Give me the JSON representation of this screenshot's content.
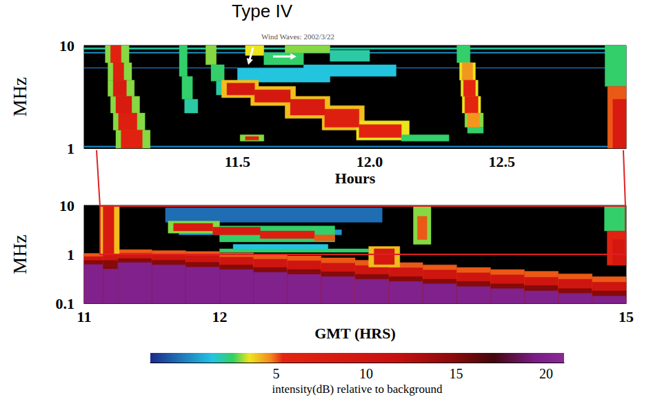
{
  "chart_data": [
    {
      "type": "heatmap",
      "title": "Wind Waves: 2002/3/22",
      "annotation": "Type IV",
      "x_label": "Hours",
      "y_label": "MHz",
      "xlim": [
        10.92,
        12.97
      ],
      "xticks": [
        11.5,
        {
          "value": 12,
          "label": "12.0"
        },
        12.5
      ],
      "ylim": [
        1,
        10
      ],
      "yticks": [
        1,
        10
      ],
      "log": "y",
      "grid": false,
      "cells": [
        [
          10.92,
          12.97,
          9.2,
          9.5,
          2
        ],
        [
          10.92,
          12.97,
          8.4,
          8.6,
          0.5
        ],
        [
          10.92,
          12.97,
          6.0,
          6.1,
          -0.5
        ],
        [
          10.92,
          12.97,
          1.02,
          1.05,
          0
        ],
        [
          11.0,
          11.09,
          6.8,
          10,
          3
        ],
        [
          11.01,
          11.1,
          4.6,
          6.8,
          3
        ],
        [
          11.01,
          11.11,
          3.2,
          4.6,
          3
        ],
        [
          11.02,
          11.13,
          2.2,
          3.2,
          3
        ],
        [
          11.03,
          11.15,
          1.5,
          2.2,
          3
        ],
        [
          11.04,
          11.17,
          1,
          1.5,
          3
        ],
        [
          11.02,
          11.06,
          6.8,
          10,
          6
        ],
        [
          11.03,
          11.07,
          4.6,
          6.8,
          7
        ],
        [
          11.03,
          11.08,
          3.2,
          4.6,
          8
        ],
        [
          11.04,
          11.1,
          2.2,
          3.2,
          8
        ],
        [
          11.05,
          11.12,
          1.5,
          2.2,
          7
        ],
        [
          11.06,
          11.14,
          1,
          1.5,
          6
        ],
        [
          11.28,
          11.31,
          5,
          10,
          2.5
        ],
        [
          11.29,
          11.33,
          3,
          5,
          2.5
        ],
        [
          11.3,
          11.35,
          2.2,
          3,
          2
        ],
        [
          11.38,
          11.42,
          6.5,
          10,
          3
        ],
        [
          11.4,
          11.45,
          4.5,
          6.5,
          2.5
        ],
        [
          11.42,
          11.48,
          3.3,
          4.5,
          2
        ],
        [
          11.5,
          11.85,
          4.4,
          6.0,
          1.5
        ],
        [
          11.75,
          12.1,
          5.0,
          6.5,
          1.5
        ],
        [
          11.53,
          11.6,
          8,
          10,
          3.5
        ],
        [
          11.6,
          11.75,
          6.5,
          8.5,
          2.5
        ],
        [
          11.68,
          11.85,
          8.5,
          10,
          3
        ],
        [
          11.85,
          12.0,
          7,
          9,
          2
        ],
        [
          11.44,
          11.58,
          3.1,
          4.6,
          4
        ],
        [
          11.55,
          11.72,
          2.6,
          4.0,
          4
        ],
        [
          11.68,
          11.85,
          1.95,
          3.2,
          4
        ],
        [
          11.82,
          11.98,
          1.5,
          2.6,
          4
        ],
        [
          11.95,
          12.15,
          1.2,
          1.85,
          3.5
        ],
        [
          11.46,
          11.565,
          3.3,
          4.3,
          9
        ],
        [
          11.565,
          11.7,
          2.8,
          3.7,
          9
        ],
        [
          11.7,
          11.83,
          2.1,
          3.0,
          8
        ],
        [
          11.83,
          11.96,
          1.6,
          2.4,
          7
        ],
        [
          11.96,
          12.12,
          1.27,
          1.7,
          6
        ],
        [
          12.12,
          12.3,
          1.17,
          1.35,
          2.5
        ],
        [
          11.51,
          11.6,
          1.17,
          1.35,
          3
        ],
        [
          11.53,
          11.58,
          1.2,
          1.3,
          6
        ],
        [
          12.33,
          12.38,
          6.8,
          10,
          2.5
        ],
        [
          12.34,
          12.4,
          4.6,
          6.8,
          3.5
        ],
        [
          12.345,
          12.41,
          3.2,
          4.6,
          3.5
        ],
        [
          12.35,
          12.42,
          2.2,
          3.2,
          3.5
        ],
        [
          12.36,
          12.43,
          1.6,
          2.2,
          3
        ],
        [
          12.37,
          12.43,
          1.4,
          1.6,
          2.5
        ],
        [
          12.35,
          12.39,
          4.6,
          6.8,
          4.5
        ],
        [
          12.355,
          12.4,
          3.2,
          4.6,
          5.5
        ],
        [
          12.36,
          12.41,
          2.2,
          3.2,
          5.5
        ],
        [
          12.37,
          12.415,
          1.6,
          2.2,
          4.5
        ],
        [
          12.89,
          12.97,
          4,
          10,
          2.5
        ],
        [
          12.9,
          12.97,
          1,
          4,
          5
        ],
        [
          12.92,
          12.97,
          1,
          3,
          8
        ]
      ]
    },
    {
      "type": "heatmap",
      "x_label": "GMT (HRS)",
      "y_label": "MHz",
      "xlim": [
        11,
        15
      ],
      "xticks": [
        11,
        12,
        15
      ],
      "ylim": [
        0.1,
        10
      ],
      "yticks": [
        0.1,
        1,
        10
      ],
      "log": "y",
      "grid": false,
      "colorbar": {
        "label": "intensity(dB) relative to background",
        "range": [
          -2,
          21
        ],
        "ticks": [
          5,
          10,
          15,
          20
        ]
      },
      "cells": [
        [
          11.6,
          13.2,
          4.5,
          9,
          -0.5
        ],
        [
          11.7,
          12.9,
          2.5,
          3.2,
          0.5
        ],
        [
          12.0,
          13.1,
          1.1,
          1.3,
          2.5
        ],
        [
          12.1,
          12.8,
          1.3,
          1.6,
          1.5
        ],
        [
          11.0,
          11.14,
          0.1,
          1.05,
          5
        ],
        [
          11.0,
          11.14,
          0.1,
          0.9,
          10
        ],
        [
          11.0,
          11.14,
          0.1,
          0.75,
          15
        ],
        [
          11.0,
          11.14,
          0.1,
          0.62,
          20
        ],
        [
          11.14,
          11.25,
          0.1,
          1.2,
          5
        ],
        [
          11.14,
          11.25,
          0.1,
          1.0,
          10
        ],
        [
          11.14,
          11.25,
          0.1,
          0.75,
          15
        ],
        [
          11.14,
          11.25,
          0.1,
          0.5,
          20
        ],
        [
          11.25,
          11.5,
          0.1,
          1.25,
          5
        ],
        [
          11.25,
          11.5,
          0.1,
          1.05,
          10
        ],
        [
          11.25,
          11.5,
          0.1,
          0.82,
          15
        ],
        [
          11.25,
          11.5,
          0.1,
          0.68,
          20
        ],
        [
          11.5,
          11.75,
          0.1,
          1.2,
          5
        ],
        [
          11.5,
          11.75,
          0.1,
          1.0,
          10
        ],
        [
          11.5,
          11.75,
          0.1,
          0.76,
          15
        ],
        [
          11.5,
          11.75,
          0.1,
          0.61,
          20
        ],
        [
          11.75,
          12.0,
          0.1,
          1.15,
          5
        ],
        [
          11.75,
          12.0,
          0.1,
          0.95,
          10
        ],
        [
          11.75,
          12.0,
          0.1,
          0.69,
          15
        ],
        [
          11.75,
          12.0,
          0.1,
          0.55,
          20
        ],
        [
          12.0,
          12.25,
          0.1,
          1.08,
          5
        ],
        [
          12.0,
          12.25,
          0.1,
          0.88,
          10
        ],
        [
          12.0,
          12.25,
          0.1,
          0.61,
          15
        ],
        [
          12.0,
          12.25,
          0.1,
          0.49,
          20
        ],
        [
          12.25,
          12.5,
          0.1,
          1.0,
          5
        ],
        [
          12.25,
          12.5,
          0.1,
          0.8,
          10
        ],
        [
          12.25,
          12.5,
          0.1,
          0.54,
          15
        ],
        [
          12.25,
          12.5,
          0.1,
          0.43,
          20
        ],
        [
          12.5,
          12.75,
          0.1,
          0.94,
          5
        ],
        [
          12.5,
          12.75,
          0.1,
          0.74,
          10
        ],
        [
          12.5,
          12.75,
          0.1,
          0.49,
          15
        ],
        [
          12.5,
          12.75,
          0.1,
          0.39,
          20
        ],
        [
          12.75,
          13.0,
          0.1,
          0.85,
          5
        ],
        [
          12.75,
          13.0,
          0.1,
          0.66,
          10
        ],
        [
          12.75,
          13.0,
          0.1,
          0.44,
          15
        ],
        [
          12.75,
          13.0,
          0.1,
          0.35,
          20
        ],
        [
          13.0,
          13.25,
          0.1,
          0.76,
          5
        ],
        [
          13.0,
          13.25,
          0.1,
          0.59,
          10
        ],
        [
          13.0,
          13.25,
          0.1,
          0.39,
          15
        ],
        [
          13.0,
          13.25,
          0.1,
          0.31,
          20
        ],
        [
          13.25,
          13.5,
          0.1,
          0.68,
          5
        ],
        [
          13.25,
          13.5,
          0.1,
          0.53,
          10
        ],
        [
          13.25,
          13.5,
          0.1,
          0.35,
          15
        ],
        [
          13.25,
          13.5,
          0.1,
          0.28,
          20
        ],
        [
          13.5,
          13.75,
          0.1,
          0.61,
          5
        ],
        [
          13.5,
          13.75,
          0.1,
          0.48,
          10
        ],
        [
          13.5,
          13.75,
          0.1,
          0.31,
          15
        ],
        [
          13.5,
          13.75,
          0.1,
          0.25,
          20
        ],
        [
          13.75,
          14.0,
          0.1,
          0.54,
          5
        ],
        [
          13.75,
          14.0,
          0.1,
          0.42,
          10
        ],
        [
          13.75,
          14.0,
          0.1,
          0.28,
          15
        ],
        [
          13.75,
          14.0,
          0.1,
          0.22,
          20
        ],
        [
          14.0,
          14.25,
          0.1,
          0.49,
          5
        ],
        [
          14.0,
          14.25,
          0.1,
          0.38,
          10
        ],
        [
          14.0,
          14.25,
          0.1,
          0.25,
          15
        ],
        [
          14.0,
          14.25,
          0.1,
          0.2,
          20
        ],
        [
          14.25,
          14.5,
          0.1,
          0.45,
          5
        ],
        [
          14.25,
          14.5,
          0.1,
          0.34,
          10
        ],
        [
          14.25,
          14.5,
          0.1,
          0.23,
          15
        ],
        [
          14.25,
          14.5,
          0.1,
          0.18,
          20
        ],
        [
          14.5,
          14.75,
          0.1,
          0.4,
          5
        ],
        [
          14.5,
          14.75,
          0.1,
          0.31,
          10
        ],
        [
          14.5,
          14.75,
          0.1,
          0.2,
          15
        ],
        [
          14.5,
          14.75,
          0.1,
          0.16,
          20
        ],
        [
          14.75,
          15.0,
          0.1,
          0.35,
          5
        ],
        [
          14.75,
          15.0,
          0.1,
          0.27,
          10
        ],
        [
          14.75,
          15.0,
          0.1,
          0.18,
          15
        ],
        [
          14.75,
          15.0,
          0.1,
          0.14,
          20
        ],
        [
          11.12,
          11.26,
          1,
          10,
          4
        ],
        [
          11.14,
          11.22,
          1,
          10,
          8
        ],
        [
          11.62,
          12.0,
          2.7,
          4.8,
          3
        ],
        [
          12.0,
          12.85,
          1.8,
          3.8,
          2.5
        ],
        [
          11.66,
          11.95,
          3.0,
          4.3,
          8
        ],
        [
          11.95,
          12.3,
          2.5,
          3.6,
          8
        ],
        [
          12.3,
          12.7,
          2.1,
          3.0,
          7
        ],
        [
          12.7,
          12.85,
          1.9,
          2.5,
          5
        ],
        [
          13.43,
          13.56,
          1.6,
          10,
          3
        ],
        [
          13.46,
          13.53,
          2.0,
          6,
          5
        ],
        [
          13.1,
          13.33,
          0.55,
          1.45,
          4
        ],
        [
          13.14,
          13.29,
          0.62,
          1.3,
          9
        ],
        [
          14.84,
          15,
          3,
          10,
          2.5
        ],
        [
          14.86,
          15,
          0.6,
          3,
          6
        ],
        [
          14.9,
          15,
          0.6,
          2,
          9
        ]
      ]
    }
  ]
}
